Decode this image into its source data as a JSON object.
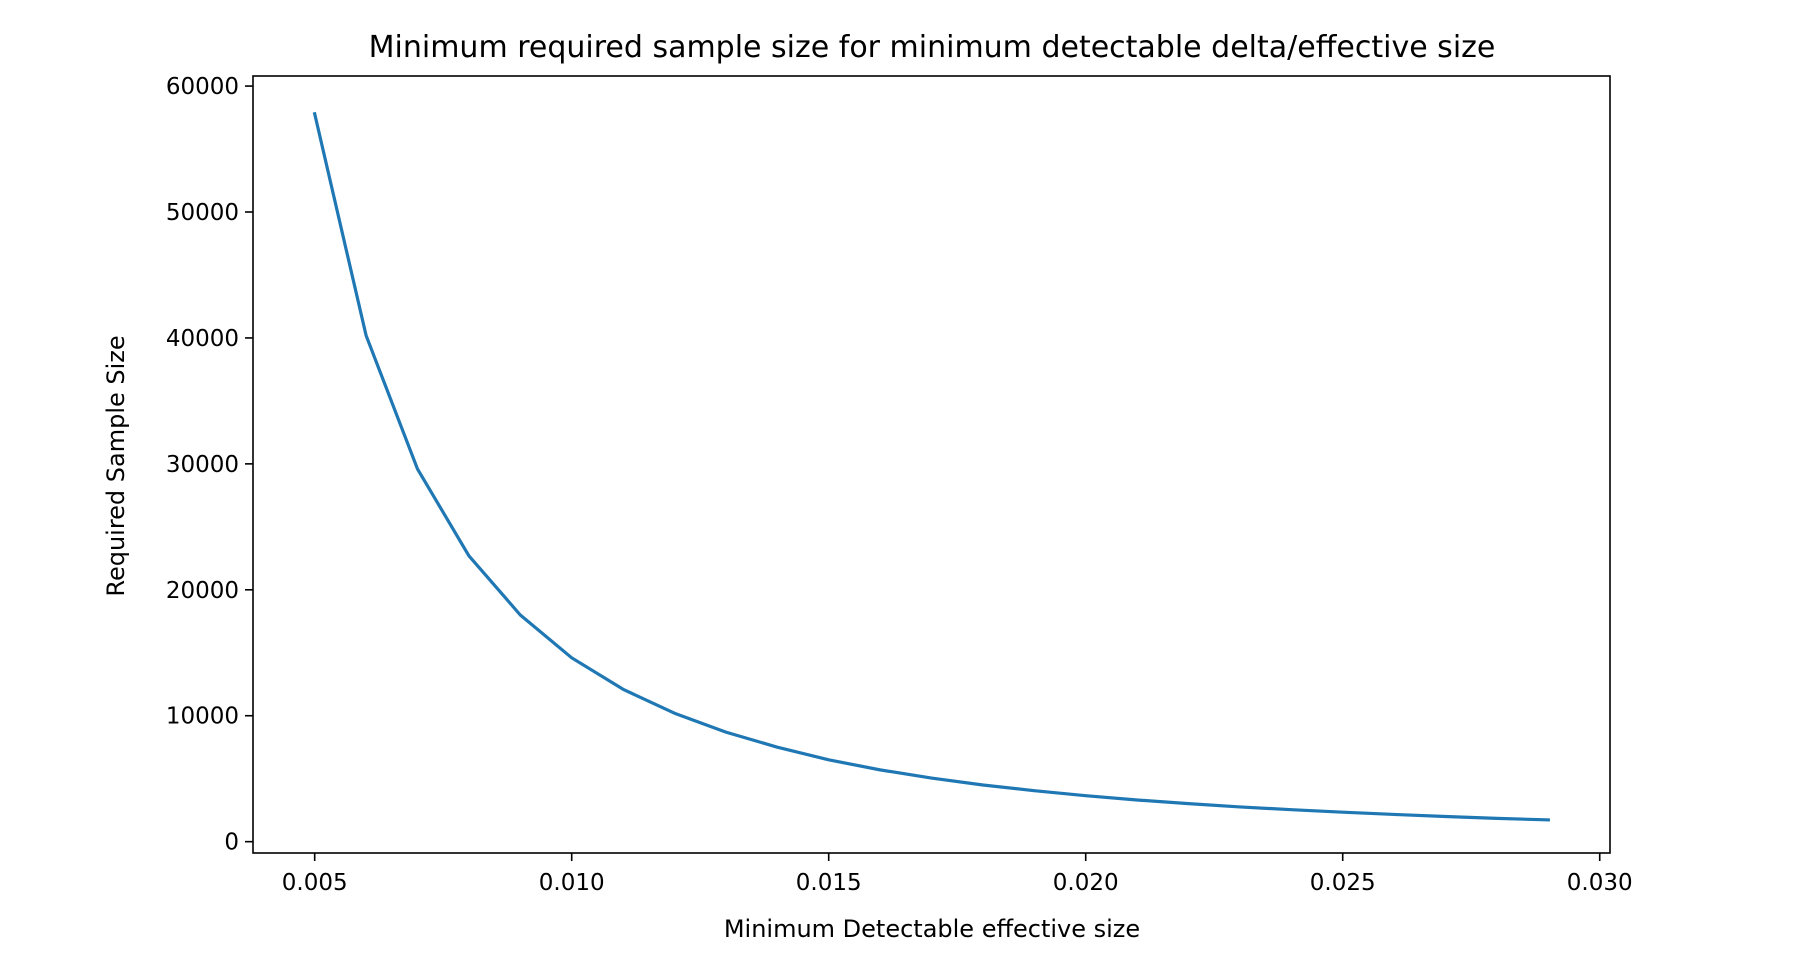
{
  "chart_data": {
    "type": "line",
    "title": "Minimum required sample size for minimum detectable delta/effective size",
    "xlabel": "Minimum Detectable effective size",
    "ylabel": "Required Sample Size",
    "xlim": [
      0.0038,
      0.0302
    ],
    "ylim": [
      -900,
      60800
    ],
    "x_ticks": [
      {
        "value": 0.005,
        "label": "0.005"
      },
      {
        "value": 0.01,
        "label": "0.010"
      },
      {
        "value": 0.015,
        "label": "0.015"
      },
      {
        "value": 0.02,
        "label": "0.020"
      },
      {
        "value": 0.025,
        "label": "0.025"
      },
      {
        "value": 0.03,
        "label": "0.030"
      }
    ],
    "y_ticks": [
      {
        "value": 0,
        "label": "0"
      },
      {
        "value": 10000,
        "label": "10000"
      },
      {
        "value": 20000,
        "label": "20000"
      },
      {
        "value": 30000,
        "label": "30000"
      },
      {
        "value": 40000,
        "label": "40000"
      },
      {
        "value": 50000,
        "label": "50000"
      },
      {
        "value": 60000,
        "label": "60000"
      }
    ],
    "grid": false,
    "series": [
      {
        "color": "#1f77b4",
        "x": [
          0.005,
          0.006,
          0.007,
          0.008,
          0.009,
          0.01,
          0.011,
          0.012,
          0.013,
          0.014,
          0.015,
          0.016,
          0.017,
          0.018,
          0.019,
          0.02,
          0.021,
          0.022,
          0.023,
          0.024,
          0.025,
          0.026,
          0.027,
          0.028,
          0.029
        ],
        "y": [
          57800,
          40200,
          29600,
          22700,
          18000,
          14600,
          12100,
          10200,
          8700,
          7500,
          6500,
          5700,
          5050,
          4500,
          4050,
          3650,
          3310,
          3020,
          2760,
          2540,
          2340,
          2160,
          2000,
          1850,
          1730
        ]
      }
    ]
  }
}
